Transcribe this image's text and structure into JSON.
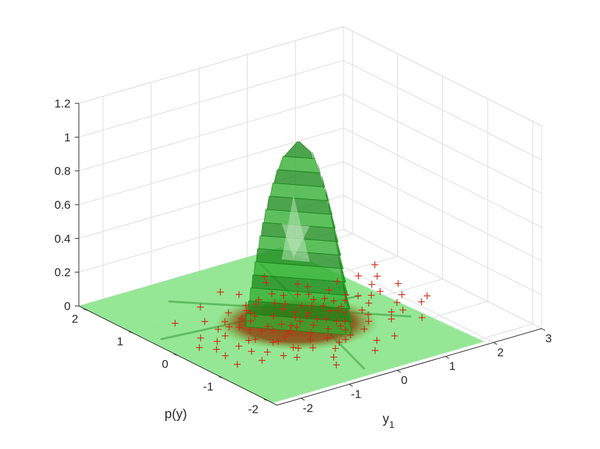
{
  "chart_data": {
    "type": "surface3d",
    "title": "",
    "axes": {
      "x": {
        "label": "y",
        "label_subscript": "1",
        "ticks": [
          -2,
          -1,
          0,
          1,
          2,
          3
        ],
        "tick_labels": [
          "-2",
          "-1",
          "0",
          "1",
          "2",
          "3"
        ],
        "lim": [
          -2.5,
          3
        ]
      },
      "y": {
        "label": "p(y)",
        "ticks": [
          -2,
          -1,
          0,
          1,
          2
        ],
        "tick_labels": [
          "-2",
          "-1",
          "0",
          "1",
          "2"
        ],
        "lim": [
          -2.2,
          2.2
        ]
      },
      "z": {
        "label": "",
        "ticks": [
          0,
          0.2,
          0.4,
          0.6,
          0.8,
          1,
          1.2
        ],
        "tick_labels": [
          "0",
          "0.2",
          "0.4",
          "0.6",
          "0.8",
          "1",
          "1.2"
        ],
        "lim": [
          0,
          1.2
        ]
      }
    },
    "grid": true,
    "colors": {
      "plane": "#8fe68f",
      "surface": "#2fae2f",
      "surface_dark": "#1a8a1a",
      "samples": "#cc2a10",
      "base_fill": "#9a3b0a"
    },
    "density_peak": {
      "x": 0.0,
      "y": 0.0,
      "z": 1.06
    },
    "samples": [
      [
        0.05,
        0.12
      ],
      [
        -0.21,
        0.33
      ],
      [
        0.41,
        -0.18
      ],
      [
        -0.55,
        0.09
      ],
      [
        0.18,
        -0.47
      ],
      [
        0.72,
        0.21
      ],
      [
        -0.33,
        -0.62
      ],
      [
        0.27,
        0.58
      ],
      [
        -0.88,
        0.14
      ],
      [
        0.61,
        -0.39
      ],
      [
        -0.12,
        0.81
      ],
      [
        0.94,
        0.05
      ],
      [
        -0.47,
        -0.28
      ],
      [
        0.13,
        -0.91
      ],
      [
        -0.69,
        0.52
      ],
      [
        1.12,
        -0.22
      ],
      [
        -1.05,
        -0.17
      ],
      [
        0.36,
        0.97
      ],
      [
        -0.24,
        -1.08
      ],
      [
        0.83,
        0.66
      ],
      [
        -0.77,
        -0.71
      ],
      [
        1.31,
        0.34
      ],
      [
        -1.28,
        0.41
      ],
      [
        0.52,
        -1.19
      ],
      [
        -0.09,
        1.22
      ],
      [
        1.46,
        -0.51
      ],
      [
        -1.42,
        -0.48
      ],
      [
        0.19,
        0.27
      ],
      [
        -0.31,
        0.04
      ],
      [
        0.44,
        0.39
      ],
      [
        -0.58,
        -0.06
      ],
      [
        0.08,
        -0.25
      ],
      [
        0.67,
        0.02
      ],
      [
        -0.15,
        -0.44
      ],
      [
        0.29,
        -0.11
      ],
      [
        -0.42,
        0.61
      ],
      [
        0.85,
        -0.14
      ],
      [
        -0.95,
        0.29
      ],
      [
        0.11,
        0.46
      ],
      [
        -0.19,
        -0.17
      ],
      [
        1.63,
        0.12
      ],
      [
        -1.61,
        0.08
      ],
      [
        0.58,
        1.33
      ],
      [
        -0.49,
        -1.31
      ],
      [
        1.02,
        0.88
      ],
      [
        -1.11,
        -0.86
      ],
      [
        1.78,
        -0.29
      ],
      [
        -1.74,
        0.31
      ],
      [
        0.23,
        -1.46
      ],
      [
        -0.27,
        1.44
      ],
      [
        0.01,
        -0.03
      ],
      [
        0.34,
        0.15
      ],
      [
        -0.36,
        -0.21
      ],
      [
        0.49,
        -0.33
      ],
      [
        -0.63,
        0.38
      ],
      [
        0.76,
        0.47
      ],
      [
        -0.81,
        -0.42
      ],
      [
        0.91,
        -0.59
      ],
      [
        -0.99,
        0.57
      ],
      [
        1.21,
        0.61
      ],
      [
        -1.23,
        -0.63
      ],
      [
        1.39,
        -0.08
      ],
      [
        -1.36,
        0.17
      ],
      [
        0.65,
        -0.77
      ],
      [
        -0.71,
        0.79
      ],
      [
        0.38,
        -0.64
      ],
      [
        -0.41,
        0.71
      ],
      [
        0.16,
        0.69
      ],
      [
        -0.07,
        -0.72
      ],
      [
        0.99,
        0.27
      ],
      [
        1.92,
        0.42
      ],
      [
        -1.88,
        -0.39
      ],
      [
        2.05,
        -0.11
      ],
      [
        -2.01,
        0.05
      ],
      [
        0.71,
        1.51
      ],
      [
        -0.66,
        -1.55
      ],
      [
        1.55,
        0.79
      ],
      [
        -1.52,
        -0.82
      ],
      [
        2.21,
        0.61
      ],
      [
        2.48,
        0.95
      ],
      [
        2.35,
        -0.35
      ],
      [
        1.71,
        -0.92
      ],
      [
        -1.69,
        0.93
      ],
      [
        0.87,
        -1.21
      ],
      [
        -0.93,
        1.18
      ],
      [
        0.47,
        0.83
      ],
      [
        -0.52,
        -0.88
      ],
      [
        1.27,
        -0.71
      ],
      [
        -1.25,
        0.74
      ],
      [
        0.03,
        0.91
      ],
      [
        -0.03,
        -0.94
      ],
      [
        0.57,
        0.31
      ],
      [
        -0.61,
        -0.35
      ],
      [
        0.93,
        0.41
      ],
      [
        -0.9,
        -0.4
      ],
      [
        1.08,
        -0.4
      ],
      [
        -1.07,
        0.39
      ],
      [
        0.31,
        -0.83
      ],
      [
        -0.28,
        0.86
      ],
      [
        1.44,
        0.21
      ],
      [
        -1.45,
        -0.23
      ],
      [
        0.79,
        -0.03
      ],
      [
        -0.75,
        0.01
      ],
      [
        0.24,
        0.05
      ],
      [
        -0.22,
        -0.08
      ],
      [
        0.42,
        -0.49
      ],
      [
        -0.45,
        0.48
      ],
      [
        1.15,
        0.19
      ],
      [
        -1.17,
        -0.15
      ],
      [
        0.68,
        0.74
      ],
      [
        -0.72,
        -0.77
      ],
      [
        1.85,
        0.16
      ],
      [
        -1.83,
        -0.14
      ],
      [
        2.12,
        -0.47
      ],
      [
        2.29,
        0.23
      ],
      [
        1.97,
        0.77
      ],
      [
        -1.95,
        -0.73
      ],
      [
        0.96,
        1.04
      ],
      [
        -0.98,
        -1.02
      ],
      [
        1.66,
        -0.55
      ]
    ]
  }
}
